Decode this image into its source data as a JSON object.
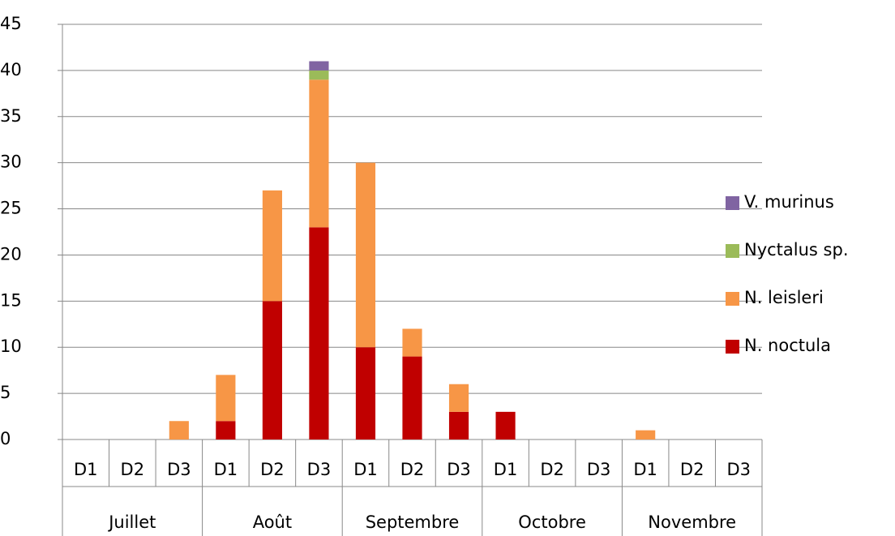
{
  "chart_data": {
    "type": "stacked_bar",
    "categories": [
      "D1",
      "D2",
      "D3",
      "D1",
      "D2",
      "D3",
      "D1",
      "D2",
      "D3",
      "D1",
      "D2",
      "D3",
      "D1",
      "D2",
      "D3"
    ],
    "groups": [
      "Juillet",
      "Août",
      "Septembre",
      "Octobre",
      "Novembre"
    ],
    "series": [
      {
        "name": "N. noctula",
        "color": "#c00000",
        "values": [
          0,
          0,
          0,
          2,
          15,
          23,
          10,
          9,
          3,
          3,
          0,
          0,
          0,
          0,
          0
        ]
      },
      {
        "name": "N. leisleri",
        "color": "#f79646",
        "values": [
          0,
          0,
          2,
          5,
          12,
          16,
          20,
          3,
          3,
          0,
          0,
          0,
          1,
          0,
          0
        ]
      },
      {
        "name": "Nyctalus sp.",
        "color": "#9bbb59",
        "values": [
          0,
          0,
          0,
          0,
          0,
          1,
          0,
          0,
          0,
          0,
          0,
          0,
          0,
          0,
          0
        ]
      },
      {
        "name": "V. murinus",
        "color": "#8064a2",
        "values": [
          0,
          0,
          0,
          0,
          0,
          1,
          0,
          0,
          0,
          0,
          0,
          0,
          0,
          0,
          0
        ]
      }
    ],
    "ylim": [
      0,
      45
    ],
    "yticks": [
      0,
      5,
      10,
      15,
      20,
      25,
      30,
      35,
      40,
      45
    ],
    "grid": true,
    "legend": "right"
  }
}
